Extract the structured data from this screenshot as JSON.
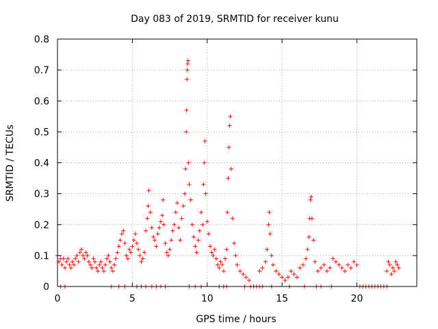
{
  "chart_data": {
    "type": "scatter",
    "title": "Day 083 of 2019, SRMTID for receiver kunu",
    "xlabel": "GPS time / hours",
    "ylabel": "SRMTID / TECUs",
    "xlim": [
      0,
      24
    ],
    "ylim": [
      0,
      0.8
    ],
    "xticks": [
      0,
      5,
      10,
      15,
      20
    ],
    "yticks": [
      0,
      0.1,
      0.2,
      0.3,
      0.4,
      0.5,
      0.6,
      0.7,
      0.8
    ],
    "xtick_labels": [
      "0",
      "5",
      "10",
      "15",
      "20"
    ],
    "ytick_labels": [
      "0",
      "0.1",
      "0.2",
      "0.3",
      "0.4",
      "0.5",
      "0.6",
      "0.7",
      "0.8"
    ],
    "grid": true,
    "marker": "plus",
    "marker_color": "#ff0000",
    "series": [
      {
        "name": "SRMTID",
        "points": [
          [
            0.0,
            0.1
          ],
          [
            0.1,
            0.08
          ],
          [
            0.2,
            0.09
          ],
          [
            0.3,
            0.07
          ],
          [
            0.4,
            0.09
          ],
          [
            0.5,
            0.06
          ],
          [
            0.6,
            0.08
          ],
          [
            0.7,
            0.09
          ],
          [
            0.8,
            0.07
          ],
          [
            0.9,
            0.06
          ],
          [
            1.0,
            0.08
          ],
          [
            1.1,
            0.07
          ],
          [
            1.2,
            0.09
          ],
          [
            1.3,
            0.1
          ],
          [
            1.4,
            0.08
          ],
          [
            1.5,
            0.11
          ],
          [
            1.6,
            0.12
          ],
          [
            1.7,
            0.1
          ],
          [
            1.8,
            0.09
          ],
          [
            1.9,
            0.11
          ],
          [
            2.0,
            0.1
          ],
          [
            2.1,
            0.08
          ],
          [
            2.2,
            0.07
          ],
          [
            2.3,
            0.06
          ],
          [
            2.4,
            0.09
          ],
          [
            2.5,
            0.08
          ],
          [
            2.6,
            0.06
          ],
          [
            2.7,
            0.05
          ],
          [
            2.8,
            0.07
          ],
          [
            2.9,
            0.08
          ],
          [
            3.0,
            0.06
          ],
          [
            3.1,
            0.05
          ],
          [
            3.2,
            0.07
          ],
          [
            3.3,
            0.09
          ],
          [
            3.4,
            0.1
          ],
          [
            3.5,
            0.08
          ],
          [
            3.6,
            0.06
          ],
          [
            3.7,
            0.05
          ],
          [
            3.8,
            0.07
          ],
          [
            3.9,
            0.09
          ],
          [
            4.0,
            0.11
          ],
          [
            4.1,
            0.13
          ],
          [
            4.2,
            0.15
          ],
          [
            4.3,
            0.17
          ],
          [
            4.4,
            0.18
          ],
          [
            4.5,
            0.14
          ],
          [
            4.6,
            0.1
          ],
          [
            4.7,
            0.09
          ],
          [
            4.8,
            0.12
          ],
          [
            4.9,
            0.11
          ],
          [
            5.0,
            0.13
          ],
          [
            5.1,
            0.15
          ],
          [
            5.2,
            0.17
          ],
          [
            5.3,
            0.14
          ],
          [
            5.4,
            0.12
          ],
          [
            5.5,
            0.1
          ],
          [
            5.6,
            0.08
          ],
          [
            5.7,
            0.09
          ],
          [
            5.8,
            0.11
          ],
          [
            5.9,
            0.18
          ],
          [
            6.0,
            0.22
          ],
          [
            6.05,
            0.26
          ],
          [
            6.1,
            0.31
          ],
          [
            6.2,
            0.24
          ],
          [
            6.3,
            0.19
          ],
          [
            6.4,
            0.16
          ],
          [
            6.5,
            0.15
          ],
          [
            6.6,
            0.13
          ],
          [
            6.7,
            0.17
          ],
          [
            6.8,
            0.19
          ],
          [
            6.9,
            0.21
          ],
          [
            7.0,
            0.23
          ],
          [
            7.05,
            0.28
          ],
          [
            7.1,
            0.2
          ],
          [
            7.2,
            0.14
          ],
          [
            7.3,
            0.11
          ],
          [
            7.4,
            0.1
          ],
          [
            7.5,
            0.12
          ],
          [
            7.6,
            0.15
          ],
          [
            7.7,
            0.18
          ],
          [
            7.8,
            0.2
          ],
          [
            7.9,
            0.24
          ],
          [
            8.0,
            0.27
          ],
          [
            8.1,
            0.19
          ],
          [
            8.2,
            0.15
          ],
          [
            8.3,
            0.22
          ],
          [
            8.4,
            0.26
          ],
          [
            8.5,
            0.3
          ],
          [
            8.55,
            0.38
          ],
          [
            8.6,
            0.5
          ],
          [
            8.62,
            0.57
          ],
          [
            8.65,
            0.67
          ],
          [
            8.67,
            0.7
          ],
          [
            8.7,
            0.72
          ],
          [
            8.72,
            0.73
          ],
          [
            8.75,
            0.4
          ],
          [
            8.8,
            0.33
          ],
          [
            8.9,
            0.28
          ],
          [
            9.0,
            0.2
          ],
          [
            9.1,
            0.16
          ],
          [
            9.2,
            0.13
          ],
          [
            9.3,
            0.11
          ],
          [
            9.4,
            0.15
          ],
          [
            9.5,
            0.18
          ],
          [
            9.6,
            0.24
          ],
          [
            9.7,
            0.2
          ],
          [
            9.75,
            0.33
          ],
          [
            9.8,
            0.4
          ],
          [
            9.85,
            0.47
          ],
          [
            9.9,
            0.3
          ],
          [
            10.0,
            0.21
          ],
          [
            10.1,
            0.17
          ],
          [
            10.2,
            0.13
          ],
          [
            10.3,
            0.11
          ],
          [
            10.4,
            0.1
          ],
          [
            10.5,
            0.12
          ],
          [
            10.6,
            0.09
          ],
          [
            10.7,
            0.07
          ],
          [
            10.8,
            0.06
          ],
          [
            10.9,
            0.08
          ],
          [
            11.0,
            0.07
          ],
          [
            11.1,
            0.05
          ],
          [
            11.2,
            0.09
          ],
          [
            11.3,
            0.12
          ],
          [
            11.35,
            0.24
          ],
          [
            11.4,
            0.35
          ],
          [
            11.45,
            0.45
          ],
          [
            11.5,
            0.52
          ],
          [
            11.55,
            0.55
          ],
          [
            11.6,
            0.38
          ],
          [
            11.7,
            0.22
          ],
          [
            11.8,
            0.14
          ],
          [
            11.9,
            0.1
          ],
          [
            12.0,
            0.07
          ],
          [
            12.2,
            0.05
          ],
          [
            12.4,
            0.04
          ],
          [
            12.6,
            0.03
          ],
          [
            12.8,
            0.02
          ],
          [
            13.5,
            0.05
          ],
          [
            13.7,
            0.06
          ],
          [
            13.9,
            0.08
          ],
          [
            14.0,
            0.12
          ],
          [
            14.1,
            0.2
          ],
          [
            14.15,
            0.24
          ],
          [
            14.2,
            0.17
          ],
          [
            14.3,
            0.1
          ],
          [
            14.4,
            0.07
          ],
          [
            14.6,
            0.05
          ],
          [
            14.8,
            0.04
          ],
          [
            15.0,
            0.03
          ],
          [
            15.2,
            0.02
          ],
          [
            15.4,
            0.03
          ],
          [
            15.6,
            0.05
          ],
          [
            15.8,
            0.04
          ],
          [
            16.0,
            0.03
          ],
          [
            16.2,
            0.06
          ],
          [
            16.4,
            0.07
          ],
          [
            16.6,
            0.09
          ],
          [
            16.7,
            0.12
          ],
          [
            16.8,
            0.16
          ],
          [
            16.85,
            0.22
          ],
          [
            16.9,
            0.28
          ],
          [
            16.95,
            0.29
          ],
          [
            17.0,
            0.22
          ],
          [
            17.1,
            0.15
          ],
          [
            17.2,
            0.08
          ],
          [
            17.4,
            0.05
          ],
          [
            17.6,
            0.06
          ],
          [
            17.8,
            0.07
          ],
          [
            18.0,
            0.05
          ],
          [
            18.2,
            0.06
          ],
          [
            18.4,
            0.09
          ],
          [
            18.6,
            0.08
          ],
          [
            18.8,
            0.07
          ],
          [
            19.0,
            0.06
          ],
          [
            19.2,
            0.05
          ],
          [
            19.4,
            0.07
          ],
          [
            19.6,
            0.06
          ],
          [
            19.8,
            0.08
          ],
          [
            20.0,
            0.07
          ],
          [
            22.0,
            0.05
          ],
          [
            22.1,
            0.08
          ],
          [
            22.2,
            0.07
          ],
          [
            22.3,
            0.04
          ],
          [
            22.4,
            0.06
          ],
          [
            22.5,
            0.05
          ],
          [
            22.6,
            0.08
          ],
          [
            22.7,
            0.07
          ],
          [
            22.8,
            0.06
          ],
          [
            0.2,
            0.0
          ],
          [
            0.5,
            0.0
          ],
          [
            3.6,
            0.0
          ],
          [
            4.1,
            0.0
          ],
          [
            4.5,
            0.0
          ],
          [
            5.3,
            0.0
          ],
          [
            5.6,
            0.0
          ],
          [
            5.9,
            0.0
          ],
          [
            6.3,
            0.0
          ],
          [
            6.6,
            0.0
          ],
          [
            6.9,
            0.0
          ],
          [
            7.2,
            0.0
          ],
          [
            8.8,
            0.0
          ],
          [
            9.2,
            0.0
          ],
          [
            9.6,
            0.0
          ],
          [
            10.8,
            0.0
          ],
          [
            11.1,
            0.0
          ],
          [
            11.3,
            0.0
          ],
          [
            12.5,
            0.0
          ],
          [
            12.9,
            0.0
          ],
          [
            13.1,
            0.0
          ],
          [
            13.3,
            0.0
          ],
          [
            13.5,
            0.0
          ],
          [
            13.7,
            0.0
          ],
          [
            14.3,
            0.0
          ],
          [
            15.5,
            0.0
          ],
          [
            16.5,
            0.0
          ],
          [
            17.3,
            0.0
          ],
          [
            17.6,
            0.0
          ],
          [
            18.3,
            0.0
          ],
          [
            20.2,
            0.0
          ],
          [
            20.4,
            0.0
          ],
          [
            20.6,
            0.0
          ],
          [
            20.8,
            0.0
          ],
          [
            21.0,
            0.0
          ],
          [
            21.2,
            0.0
          ],
          [
            21.4,
            0.0
          ],
          [
            21.6,
            0.0
          ],
          [
            21.8,
            0.0
          ],
          [
            22.0,
            0.0
          ]
        ]
      }
    ]
  }
}
